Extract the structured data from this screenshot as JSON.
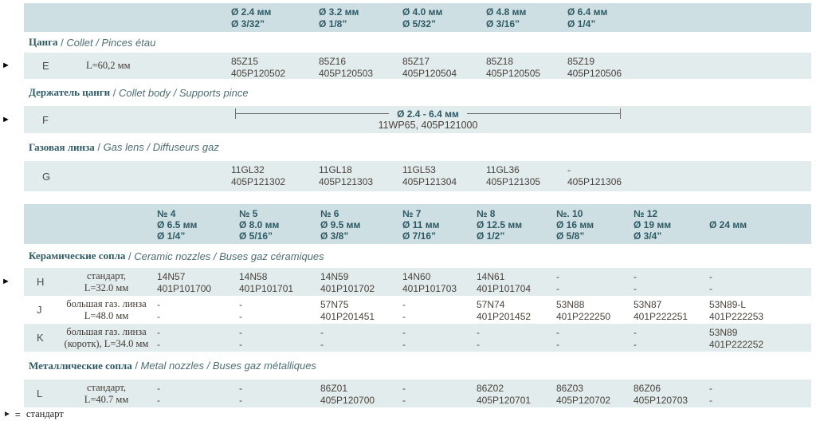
{
  "icons": {
    "standard_marker": "►"
  },
  "colors": {
    "band_header": "#cddfe2",
    "band_row": "#e2eced",
    "title_teal": "#2d5a63",
    "latin_gray": "#4e6e74",
    "data_text": "#48433c"
  },
  "footer": {
    "eq": "=",
    "label": "стандарт"
  },
  "sep": " / ",
  "table1": {
    "headers": [
      {
        "mm": "Ø 2.4 мм",
        "inch": "Ø 3/32”"
      },
      {
        "mm": "Ø 3.2 мм",
        "inch": "Ø 1/8”"
      },
      {
        "mm": "Ø 4.0 мм",
        "inch": "Ø 5/32”"
      },
      {
        "mm": "Ø 4.8 мм",
        "inch": "Ø 3/16”"
      },
      {
        "mm": "Ø 6.4 мм",
        "inch": "Ø 1/4”"
      }
    ],
    "sections": [
      {
        "ru": "Цанга",
        "latin": "Collet / Pinces étau"
      },
      {
        "ru": "Держатель цанги",
        "latin": "Collet body / Supports pince"
      },
      {
        "ru": "Газовая линза",
        "latin": "Gas lens / Diffuseurs gaz"
      }
    ],
    "rowE": {
      "letter": "E",
      "desc": "L=60,2 мм",
      "cells": [
        [
          "85Z15",
          "405P120502"
        ],
        [
          "85Z16",
          "405P120503"
        ],
        [
          "85Z17",
          "405P120504"
        ],
        [
          "85Z18",
          "405P120505"
        ],
        [
          "85Z19",
          "405P120506"
        ]
      ]
    },
    "rowF": {
      "letter": "F",
      "span_label": "Ø 2.4 - 6.4 мм",
      "span_value": "11WP65, 405P121000"
    },
    "rowG": {
      "letter": "G",
      "cells": [
        [
          "11GL32",
          "405P121302"
        ],
        [
          "11GL18",
          "405P121303"
        ],
        [
          "11GL53",
          "405P121304"
        ],
        [
          "11GL36",
          "405P121305"
        ],
        [
          "-",
          "405P121306"
        ]
      ]
    }
  },
  "table2": {
    "headers": [
      {
        "num": "№ 4",
        "mm": "Ø 6.5 мм",
        "inch": "Ø 1/4”"
      },
      {
        "num": "№ 5",
        "mm": "Ø 8.0 мм",
        "inch": "Ø 5/16”"
      },
      {
        "num": "№ 6",
        "mm": "Ø 9.5 мм",
        "inch": "Ø 3/8”"
      },
      {
        "num": "№ 7",
        "mm": "Ø 11 мм",
        "inch": "Ø 7/16”"
      },
      {
        "num": "№ 8",
        "mm": "Ø 12.5 мм",
        "inch": "Ø 1/2”"
      },
      {
        "num": "№. 10",
        "mm": "Ø 16 мм",
        "inch": "Ø 5/8”"
      },
      {
        "num": "№ 12",
        "mm": "Ø 19 мм",
        "inch": "Ø 3/4”"
      },
      {
        "num": "",
        "mm": "Ø 24 мм",
        "inch": ""
      }
    ],
    "sections": [
      {
        "ru": "Керамические сопла",
        "latin": "Ceramic nozzles / Buses gaz céramiques"
      },
      {
        "ru": "Металлические сопла",
        "latin": "Metal nozzles / Buses gaz métalliques"
      }
    ],
    "rowH": {
      "letter": "H",
      "desc1": "стандарт,",
      "desc2": "L=32.0 мм",
      "cells": [
        [
          "14N57",
          "401P101700"
        ],
        [
          "14N58",
          "401P101701"
        ],
        [
          "14N59",
          "401P101702"
        ],
        [
          "14N60",
          "401P101703"
        ],
        [
          "14N61",
          "401P101704"
        ],
        [
          "-",
          "-"
        ],
        [
          "-",
          "-"
        ],
        [
          "-",
          "-"
        ]
      ]
    },
    "rowJ": {
      "letter": "J",
      "desc1": "большая газ. линза",
      "desc2": "L=48.0 мм",
      "cells": [
        [
          "-",
          "-"
        ],
        [
          "-",
          "-"
        ],
        [
          "57N75",
          "401P201451"
        ],
        [
          "-",
          "-"
        ],
        [
          "57N74",
          "401P201452"
        ],
        [
          "53N88",
          "401P222250"
        ],
        [
          "53N87",
          "401P222251"
        ],
        [
          "53N89-L",
          "401P222253"
        ]
      ]
    },
    "rowK": {
      "letter": "K",
      "desc1": "большая газ. линза",
      "desc2": "(коротк), L=34.0 мм",
      "cells": [
        [
          "-",
          "-"
        ],
        [
          "-",
          "-"
        ],
        [
          "-",
          "-"
        ],
        [
          "-",
          "-"
        ],
        [
          "-",
          "-"
        ],
        [
          "-",
          "-"
        ],
        [
          "-",
          "-"
        ],
        [
          "53N89",
          "401P222252"
        ]
      ]
    },
    "rowL": {
      "letter": "L",
      "desc1": "стандарт,",
      "desc2": "L=40.7 мм",
      "cells": [
        [
          "-",
          "-"
        ],
        [
          "-",
          "-"
        ],
        [
          "86Z01",
          "405P120700"
        ],
        [
          "-",
          "-"
        ],
        [
          "86Z02",
          "405P120701"
        ],
        [
          "86Z03",
          "405P120702"
        ],
        [
          "86Z06",
          "405P120703"
        ],
        [
          "-",
          "-"
        ]
      ]
    }
  }
}
